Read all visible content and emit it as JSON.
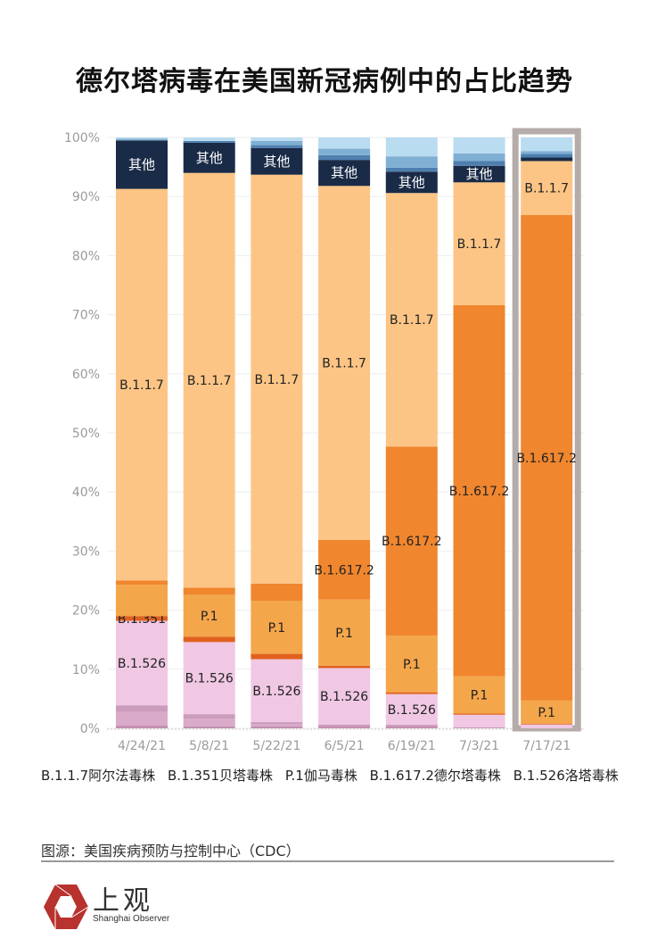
{
  "title": "德尔塔病毒在美国新冠病例中的占比趋势",
  "chart_data": {
    "type": "bar",
    "stacked": true,
    "ylim": [
      0,
      100
    ],
    "yticks": [
      "0%",
      "10%",
      "20%",
      "30%",
      "40%",
      "50%",
      "60%",
      "70%",
      "80%",
      "90%",
      "100%"
    ],
    "grid": true,
    "categories": [
      "4/24/21",
      "5/8/21",
      "5/22/21",
      "6/5/21",
      "6/19/21",
      "7/3/21",
      "7/17/21"
    ],
    "highlighted_category": "7/17/21",
    "colors": {
      "pink-dark": "#c48fb2",
      "pink-mid": "#d9abc9",
      "pink-band": "#cc9cbc",
      "B.1.526": "#f0c8e4",
      "B.1.351": "#e0601e",
      "P.1": "#f4a64a",
      "B.1.617.2": "#f0862e",
      "B.1.1.7": "#fdc585",
      "其他": "#1a2b47",
      "blue-dark": "#4e7fae",
      "blue-mid": "#80afd4",
      "blue-light": "#b9dcf0",
      "highlight": "#b5aba8"
    },
    "bars": [
      [
        [
          "pink-dark",
          0.45
        ],
        [
          "pink-mid",
          2.35
        ],
        [
          "pink-band",
          1.1
        ],
        [
          "B.1.526",
          14.3,
          "B.1.526"
        ],
        [
          "B.1.351",
          0.8,
          "B.1.351"
        ],
        [
          "P.1",
          5.3
        ],
        [
          "B.1.617.2",
          0.7
        ],
        [
          "B.1.1.7",
          66.3,
          "B.1.1.7"
        ],
        [
          "其他",
          8.2,
          "其他"
        ],
        [
          "blue-mid",
          0.3
        ],
        [
          "blue-light",
          0.2
        ]
      ],
      [
        [
          "pink-dark",
          0.35
        ],
        [
          "pink-mid",
          1.3
        ],
        [
          "pink-band",
          0.75
        ],
        [
          "B.1.526",
          12.2,
          "B.1.526"
        ],
        [
          "B.1.351",
          0.9
        ],
        [
          "P.1",
          7.1,
          "P.1"
        ],
        [
          "B.1.617.2",
          1.2
        ],
        [
          "B.1.1.7",
          70.2,
          "B.1.1.7"
        ],
        [
          "其他",
          5.1,
          "其他"
        ],
        [
          "blue-dark",
          0.3
        ],
        [
          "blue-light",
          0.6
        ]
      ],
      [
        [
          "pink-dark",
          0.3
        ],
        [
          "pink-mid",
          0.35
        ],
        [
          "pink-band",
          0.4
        ],
        [
          "B.1.526",
          10.65,
          "B.1.526"
        ],
        [
          "B.1.351",
          0.9
        ],
        [
          "P.1",
          9.0,
          "P.1"
        ],
        [
          "B.1.617.2",
          2.9
        ],
        [
          "B.1.1.7",
          69.2,
          "B.1.1.7"
        ],
        [
          "其他",
          4.5,
          "其他"
        ],
        [
          "blue-dark",
          0.5
        ],
        [
          "blue-mid",
          0.7
        ],
        [
          "blue-light",
          0.6
        ]
      ],
      [
        [
          "pink-dark",
          0.3
        ],
        [
          "pink-band",
          0.35
        ],
        [
          "B.1.526",
          9.55,
          "B.1.526"
        ],
        [
          "B.1.351",
          0.4
        ],
        [
          "P.1",
          11.2,
          "P.1"
        ],
        [
          "B.1.617.2",
          10.1,
          "B.1.617.2"
        ],
        [
          "B.1.1.7",
          59.9,
          "B.1.1.7"
        ],
        [
          "其他",
          4.4,
          "其他"
        ],
        [
          "blue-dark",
          0.8
        ],
        [
          "blue-mid",
          1.1
        ],
        [
          "blue-light",
          1.9
        ]
      ],
      [
        [
          "pink-dark",
          0.3
        ],
        [
          "pink-band",
          0.3
        ],
        [
          "B.1.526",
          5.2,
          "B.1.526"
        ],
        [
          "B.1.351",
          0.3
        ],
        [
          "P.1",
          9.6,
          "P.1"
        ],
        [
          "B.1.617.2",
          32.0,
          "B.1.617.2"
        ],
        [
          "B.1.1.7",
          42.9,
          "B.1.1.7"
        ],
        [
          "其他",
          3.6,
          "其他"
        ],
        [
          "blue-dark",
          0.7
        ],
        [
          "blue-mid",
          1.9
        ],
        [
          "blue-light",
          3.2
        ]
      ],
      [
        [
          "pink-band",
          0.2
        ],
        [
          "B.1.526",
          2.1
        ],
        [
          "B.1.351",
          0.2
        ],
        [
          "P.1",
          6.3,
          "P.1"
        ],
        [
          "B.1.617.2",
          62.8,
          "B.1.617.2"
        ],
        [
          "B.1.1.7",
          20.8,
          "B.1.1.7"
        ],
        [
          "其他",
          2.8,
          "其他"
        ],
        [
          "blue-dark",
          0.8
        ],
        [
          "blue-mid",
          1.3
        ],
        [
          "blue-light",
          2.7
        ]
      ],
      [
        [
          "B.1.526",
          0.65
        ],
        [
          "B.1.351",
          0.15
        ],
        [
          "P.1",
          3.9,
          "P.1"
        ],
        [
          "B.1.617.2",
          82.2,
          "B.1.617.2"
        ],
        [
          "B.1.1.7",
          9.1,
          "B.1.1.7"
        ],
        [
          "其他",
          0.6
        ],
        [
          "blue-dark",
          0.6
        ],
        [
          "blue-mid",
          0.5
        ],
        [
          "blue-light",
          2.3
        ]
      ]
    ]
  },
  "legend": [
    "B.1.1.7阿尔法毒株",
    "B.1.351贝塔毒株",
    "P.1伽马毒株",
    "B.1.617.2德尔塔毒株",
    "B.1.526洛塔毒株"
  ],
  "source": "图源：美国疾病预防与控制中心（CDC）",
  "logo": {
    "cn": "上观",
    "en": "Shanghai Observer",
    "color": "#b8322e"
  }
}
